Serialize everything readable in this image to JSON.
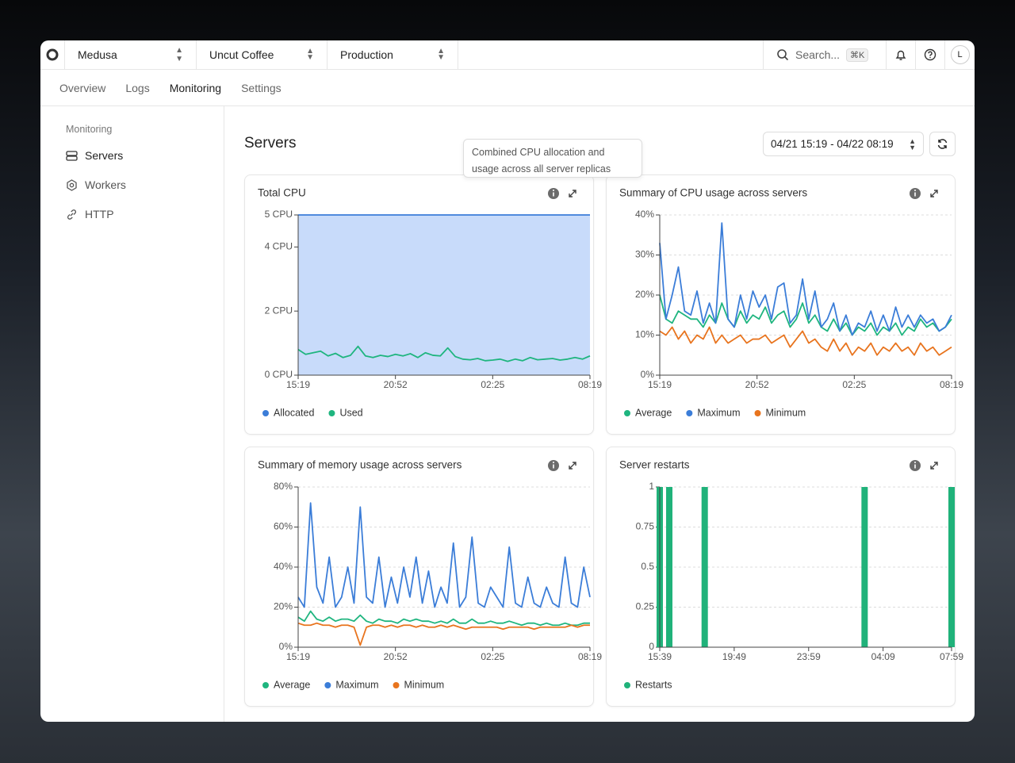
{
  "header": {
    "selectors": [
      "Medusa",
      "Uncut Coffee",
      "Production"
    ],
    "search": "Search...",
    "shortcut": "⌘K",
    "avatar": "L"
  },
  "tabs": [
    "Overview",
    "Logs",
    "Monitoring",
    "Settings"
  ],
  "sidebar": {
    "heading": "Monitoring",
    "items": [
      "Servers",
      "Workers",
      "HTTP"
    ]
  },
  "main": {
    "title": "Servers",
    "date_range": "04/21 15:19 - 04/22 08:19",
    "tooltip": "Combined CPU allocation and usage across all server replicas"
  },
  "chart_data": [
    {
      "type": "line",
      "title": "Total CPU",
      "xticks": [
        "15:19",
        "20:52",
        "02:25",
        "08:19"
      ],
      "ylim": [
        0,
        5
      ],
      "yticks": [
        {
          "value": 0,
          "label": "0 CPU"
        },
        {
          "value": 2,
          "label": "2 CPU"
        },
        {
          "value": 4,
          "label": "4 CPU"
        },
        {
          "value": 5,
          "label": "5 CPU"
        }
      ],
      "grid": true,
      "series": [
        {
          "name": "Allocated",
          "color": "#3b7dd8",
          "area": true,
          "values": [
            5,
            5,
            5,
            5,
            5,
            5,
            5,
            5,
            5,
            5,
            5,
            5,
            5,
            5,
            5,
            5,
            5,
            5,
            5,
            5,
            5,
            5,
            5,
            5,
            5,
            5,
            5,
            5,
            5,
            5,
            5,
            5,
            5,
            5,
            5,
            5,
            5,
            5,
            5,
            5
          ]
        },
        {
          "name": "Used",
          "color": "#1fb57f",
          "values": [
            0.8,
            0.65,
            0.7,
            0.75,
            0.6,
            0.68,
            0.55,
            0.62,
            0.9,
            0.6,
            0.55,
            0.62,
            0.58,
            0.65,
            0.6,
            0.67,
            0.55,
            0.7,
            0.62,
            0.6,
            0.85,
            0.58,
            0.5,
            0.48,
            0.52,
            0.45,
            0.47,
            0.5,
            0.43,
            0.5,
            0.45,
            0.55,
            0.48,
            0.5,
            0.52,
            0.47,
            0.5,
            0.55,
            0.5,
            0.6
          ]
        }
      ]
    },
    {
      "type": "line",
      "title": "Summary of CPU usage across servers",
      "xticks": [
        "15:19",
        "20:52",
        "02:25",
        "08:19"
      ],
      "ylim": [
        0,
        40
      ],
      "yticks": [
        {
          "value": 0,
          "label": "0%"
        },
        {
          "value": 10,
          "label": "10%"
        },
        {
          "value": 20,
          "label": "20%"
        },
        {
          "value": 30,
          "label": "30%"
        },
        {
          "value": 40,
          "label": "40%"
        }
      ],
      "grid": true,
      "series": [
        {
          "name": "Average",
          "color": "#1fb57f",
          "values": [
            20,
            14,
            13,
            16,
            15,
            14,
            14,
            12,
            15,
            13,
            18,
            14,
            12,
            16,
            13,
            15,
            14,
            17,
            13,
            15,
            16,
            12,
            14,
            18,
            13,
            15,
            12,
            11,
            14,
            11,
            13,
            10,
            12,
            11,
            13,
            10,
            12,
            11,
            13,
            10,
            12,
            11,
            14,
            12,
            13,
            11,
            12,
            14
          ]
        },
        {
          "name": "Maximum",
          "color": "#3b7dd8",
          "values": [
            33,
            14,
            20,
            27,
            16,
            15,
            21,
            13,
            18,
            13,
            38,
            14,
            12,
            20,
            14,
            21,
            17,
            20,
            14,
            22,
            23,
            13,
            15,
            24,
            14,
            21,
            12,
            14,
            18,
            11,
            15,
            10,
            13,
            12,
            16,
            11,
            15,
            11,
            17,
            12,
            15,
            12,
            15,
            13,
            14,
            11,
            12,
            15
          ]
        },
        {
          "name": "Minimum",
          "color": "#e8741e",
          "values": [
            11,
            10,
            12,
            9,
            11,
            8,
            10,
            9,
            12,
            8,
            10,
            8,
            9,
            10,
            8,
            9,
            9,
            10,
            8,
            9,
            10,
            7,
            9,
            11,
            8,
            9,
            7,
            6,
            9,
            6,
            8,
            5,
            7,
            6,
            8,
            5,
            7,
            6,
            8,
            6,
            7,
            5,
            8,
            6,
            7,
            5,
            6,
            7
          ]
        }
      ]
    },
    {
      "type": "line",
      "title": "Summary of memory usage across servers",
      "xticks": [
        "15:19",
        "20:52",
        "02:25",
        "08:19"
      ],
      "ylim": [
        0,
        80
      ],
      "yticks": [
        {
          "value": 0,
          "label": "0%"
        },
        {
          "value": 20,
          "label": "20%"
        },
        {
          "value": 40,
          "label": "40%"
        },
        {
          "value": 60,
          "label": "60%"
        },
        {
          "value": 80,
          "label": "80%"
        }
      ],
      "grid": true,
      "series": [
        {
          "name": "Average",
          "color": "#1fb57f",
          "values": [
            15,
            13,
            18,
            14,
            13,
            15,
            13,
            14,
            14,
            13,
            16,
            13,
            12,
            14,
            13,
            13,
            12,
            14,
            13,
            14,
            13,
            13,
            12,
            13,
            12,
            14,
            12,
            12,
            14,
            12,
            12,
            13,
            12,
            12,
            13,
            12,
            11,
            12,
            12,
            11,
            12,
            11,
            11,
            12,
            11,
            11,
            12,
            12
          ]
        },
        {
          "name": "Maximum",
          "color": "#3b7dd8",
          "values": [
            25,
            20,
            72,
            30,
            22,
            45,
            20,
            25,
            40,
            22,
            70,
            25,
            22,
            45,
            20,
            35,
            22,
            40,
            25,
            45,
            22,
            38,
            20,
            30,
            22,
            52,
            20,
            25,
            55,
            22,
            20,
            30,
            25,
            20,
            50,
            22,
            20,
            35,
            22,
            20,
            30,
            22,
            20,
            45,
            22,
            20,
            40,
            25
          ]
        },
        {
          "name": "Minimum",
          "color": "#e8741e",
          "values": [
            12,
            11,
            11,
            12,
            11,
            11,
            10,
            11,
            11,
            10,
            1,
            10,
            11,
            11,
            10,
            11,
            10,
            11,
            11,
            10,
            11,
            10,
            10,
            11,
            10,
            11,
            10,
            9,
            10,
            10,
            10,
            10,
            10,
            9,
            10,
            10,
            10,
            10,
            9,
            10,
            10,
            10,
            10,
            10,
            11,
            10,
            11,
            11
          ]
        }
      ]
    },
    {
      "type": "bar",
      "title": "Server restarts",
      "xticks": [
        "15:39",
        "19:49",
        "23:59",
        "04:09",
        "07:59"
      ],
      "x": [
        "15:39",
        "16:11",
        "18:10",
        "03:07",
        "07:59"
      ],
      "ylim": [
        0,
        1
      ],
      "yticks": [
        0,
        0.25,
        0.5,
        0.75,
        1
      ],
      "grid": true,
      "series": [
        {
          "name": "Restarts",
          "color": "#20b27a",
          "values": [
            1,
            1,
            1,
            1,
            1
          ]
        }
      ]
    }
  ]
}
